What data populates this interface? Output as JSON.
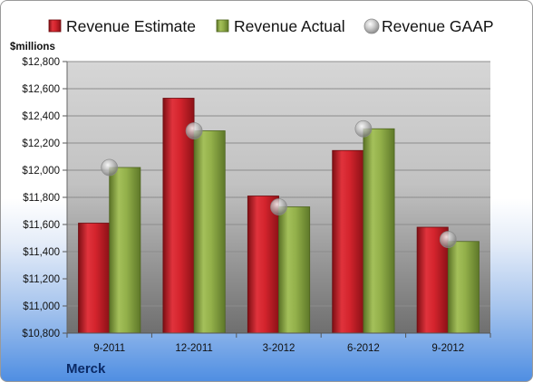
{
  "chart_data": {
    "type": "bar",
    "title": "",
    "unit_label": "$millions",
    "company": "Merck",
    "categories": [
      "9-2011",
      "12-2011",
      "3-2012",
      "6-2012",
      "9-2012"
    ],
    "series": [
      {
        "name": "Revenue Estimate",
        "type": "bar",
        "color": "#c81e28",
        "values": [
          11610,
          12530,
          11810,
          12145,
          11580
        ]
      },
      {
        "name": "Revenue Actual",
        "type": "bar",
        "color": "#8aa63e",
        "values": [
          12020,
          12290,
          11730,
          12305,
          11475
        ]
      },
      {
        "name": "Revenue GAAP",
        "type": "marker",
        "color": "#b8b8b8",
        "values": [
          12020,
          12290,
          11730,
          12305,
          11490
        ]
      }
    ],
    "ylim": [
      10800,
      12800
    ],
    "yticks": [
      10800,
      11000,
      11200,
      11400,
      11600,
      11800,
      12000,
      12200,
      12400,
      12600,
      12800
    ],
    "ytick_labels": [
      "$10,800",
      "$11,000",
      "$11,200",
      "$11,400",
      "$11,600",
      "$11,800",
      "$12,000",
      "$12,200",
      "$12,400",
      "$12,600",
      "$12,800"
    ],
    "grid": true,
    "legend_position": "top"
  }
}
